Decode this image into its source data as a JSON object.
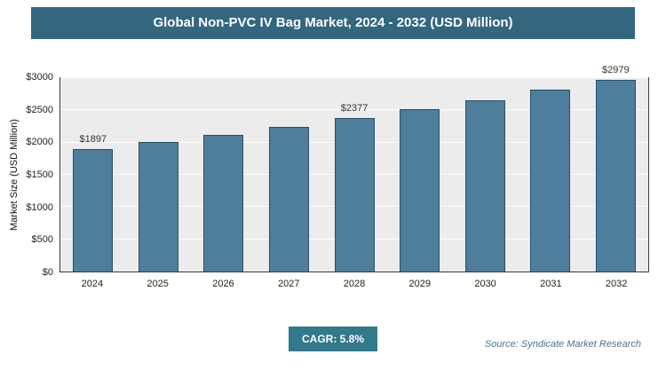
{
  "header": {
    "title": "Global Non-PVC IV Bag Market, 2024 - 2032 (USD Million)"
  },
  "chart_data": {
    "type": "bar",
    "title": "Global Non-PVC IV Bag Market, 2024 - 2032 (USD Million)",
    "categories": [
      "2024",
      "2025",
      "2026",
      "2027",
      "2028",
      "2029",
      "2030",
      "2031",
      "2032"
    ],
    "values": [
      1897,
      2007,
      2123,
      2246,
      2377,
      2515,
      2661,
      2815,
      2979
    ],
    "data_labels": [
      "$1897",
      "",
      "",
      "",
      "$2377",
      "",
      "",
      "",
      "$2979"
    ],
    "xlabel": "",
    "ylabel": "Market Size (USD Million)",
    "ylim": [
      0,
      3000
    ],
    "ytick_step": 500,
    "ytick_labels": [
      "$0",
      "$500",
      "$1000",
      "$1500",
      "$2000",
      "$2500",
      "$3000"
    ],
    "grid": true,
    "legend": "none",
    "bar_color": "#4f7e9c",
    "bar_border_color": "#28506a"
  },
  "footer": {
    "cagr_label": "CAGR: 5.8%",
    "source": "Source: Syndicate Market Research"
  },
  "colors": {
    "title_bar": "#336780",
    "plot_background": "#ececec",
    "gridline": "#ffffff",
    "badge": "#31798b"
  }
}
